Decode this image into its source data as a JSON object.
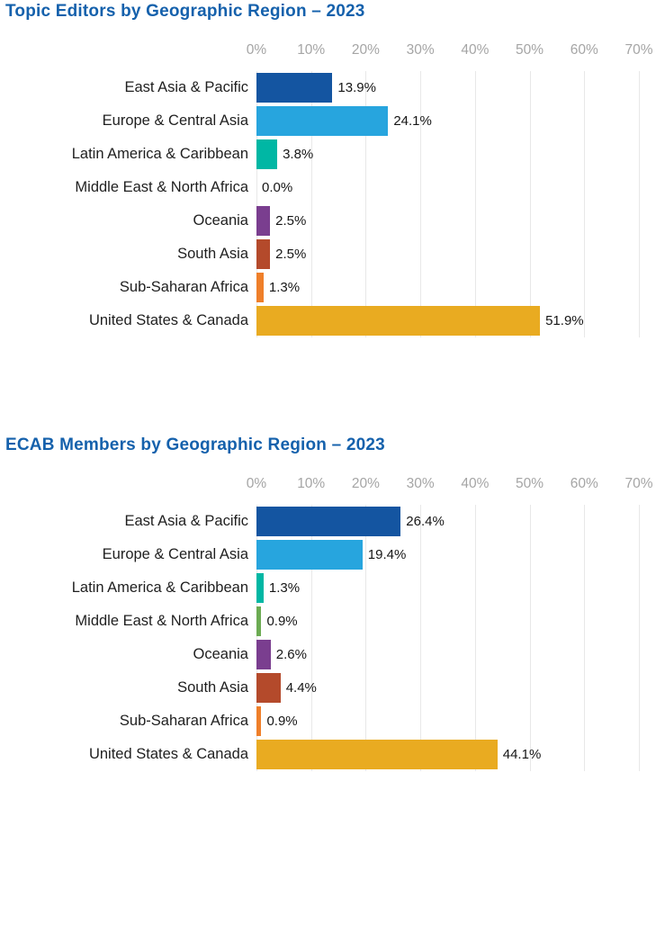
{
  "page": {
    "background": "#ffffff",
    "title_color": "#1561ac",
    "tick_color": "#a5a5a5",
    "gridline_color": "#e8e8e8"
  },
  "chart_data": [
    {
      "type": "bar",
      "orientation": "horizontal",
      "title": "Topic Editors by Geographic Region – 2023",
      "categories": [
        "East Asia & Pacific",
        "Europe & Central Asia",
        "Latin America & Caribbean",
        "Middle East & North Africa",
        "Oceania",
        "South Asia",
        "Sub-Saharan Africa",
        "United States & Canada"
      ],
      "values": [
        13.9,
        24.1,
        3.8,
        0.0,
        2.5,
        2.5,
        1.3,
        51.9
      ],
      "labels": [
        "13.9%",
        "24.1%",
        "3.8%",
        "0.0%",
        "2.5%",
        "2.5%",
        "1.3%",
        "51.9%"
      ],
      "bar_colors": [
        "#1455A1",
        "#27A5DE",
        "#00B7A4",
        "#6CAB53",
        "#7A3E8F",
        "#B44A2B",
        "#EF7F2A",
        "#E9AB21"
      ],
      "xlabel": "",
      "ylabel": "",
      "xlim": [
        0,
        70
      ],
      "xticks": [
        0,
        10,
        20,
        30,
        40,
        50,
        60,
        70
      ],
      "tick_labels": [
        "0%",
        "10%",
        "20%",
        "30%",
        "40%",
        "50%",
        "60%",
        "70%"
      ],
      "grid": "vertical",
      "legend": "none",
      "value_labels_position": "right-of-bar"
    },
    {
      "type": "bar",
      "orientation": "horizontal",
      "title": "ECAB Members by Geographic Region – 2023",
      "categories": [
        "East Asia & Pacific",
        "Europe & Central Asia",
        "Latin America & Caribbean",
        "Middle East & North Africa",
        "Oceania",
        "South Asia",
        "Sub-Saharan Africa",
        "United States & Canada"
      ],
      "values": [
        26.4,
        19.4,
        1.3,
        0.9,
        2.6,
        4.4,
        0.9,
        44.1
      ],
      "labels": [
        "26.4%",
        "19.4%",
        "1.3%",
        "0.9%",
        "2.6%",
        "4.4%",
        "0.9%",
        "44.1%"
      ],
      "bar_colors": [
        "#1455A1",
        "#27A5DE",
        "#00B7A4",
        "#6CAB53",
        "#7A3E8F",
        "#B44A2B",
        "#EF7F2A",
        "#E9AB21"
      ],
      "xlabel": "",
      "ylabel": "",
      "xlim": [
        0,
        70
      ],
      "xticks": [
        0,
        10,
        20,
        30,
        40,
        50,
        60,
        70
      ],
      "tick_labels": [
        "0%",
        "10%",
        "20%",
        "30%",
        "40%",
        "50%",
        "60%",
        "70%"
      ],
      "grid": "vertical",
      "legend": "none",
      "value_labels_position": "right-of-bar"
    }
  ]
}
